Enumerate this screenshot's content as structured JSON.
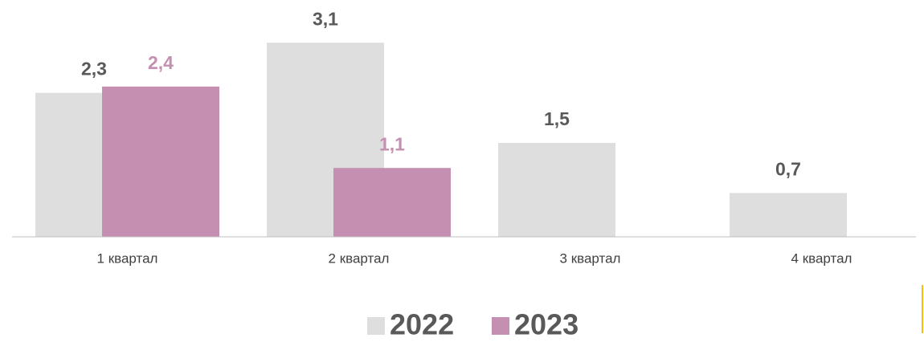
{
  "chart_data": {
    "type": "bar",
    "categories": [
      "1 квартал",
      "2 квартал",
      "3 квартал",
      "4 квартал"
    ],
    "series": [
      {
        "name": "2022",
        "color": "#dedede",
        "label_color": "#595959",
        "values": [
          2.3,
          3.1,
          1.5,
          0.7
        ],
        "value_labels": [
          "2,3",
          "3,1",
          "1,5",
          "0,7"
        ]
      },
      {
        "name": "2023",
        "color": "#c48fb0",
        "label_color": "#c48fb0",
        "values": [
          2.4,
          1.1,
          null,
          null
        ],
        "value_labels": [
          "2,4",
          "1,1",
          null,
          null
        ]
      }
    ],
    "legend": "bottom"
  }
}
